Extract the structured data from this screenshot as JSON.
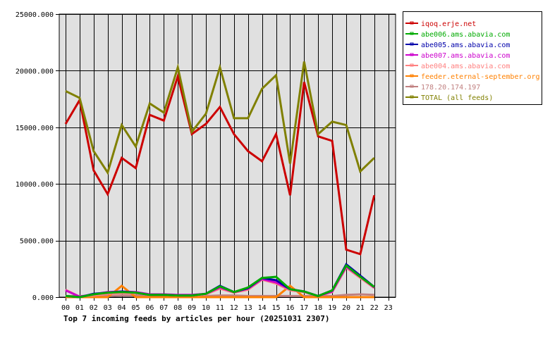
{
  "chart_data": {
    "type": "line",
    "title": "Top 7 incoming feeds by articles per hour (20251031 2307)",
    "xlabel": "",
    "ylabel": "",
    "ylim": [
      0,
      25000
    ],
    "yticks": [
      0,
      5000,
      10000,
      15000,
      20000,
      25000
    ],
    "ytick_labels": [
      "0.000",
      "5000.000",
      "10000.000",
      "15000.000",
      "20000.000",
      "25000.000"
    ],
    "categories": [
      "00",
      "01",
      "02",
      "03",
      "04",
      "05",
      "06",
      "07",
      "08",
      "09",
      "10",
      "11",
      "12",
      "13",
      "14",
      "15",
      "16",
      "17",
      "18",
      "19",
      "20",
      "21",
      "22",
      "23"
    ],
    "grid": true,
    "legend_position": "right-top",
    "series": [
      {
        "name": "iqoq.erje.net",
        "color": "#cc0000",
        "values": [
          15300,
          17400,
          11200,
          9100,
          12300,
          11400,
          16100,
          15600,
          19500,
          14400,
          15300,
          16800,
          14400,
          12900,
          12000,
          14400,
          9000,
          19000,
          14200,
          13800,
          4200,
          3800,
          9000
        ]
      },
      {
        "name": "abe006.ams.abavia.com",
        "color": "#00aa00",
        "values": [
          100,
          0,
          250,
          400,
          450,
          400,
          200,
          200,
          150,
          150,
          300,
          950,
          450,
          850,
          1700,
          1800,
          700,
          500,
          100,
          600,
          2800,
          1800,
          900
        ]
      },
      {
        "name": "abe005.ams.abavia.com",
        "color": "#0000aa",
        "values": [
          100,
          0,
          300,
          400,
          500,
          400,
          200,
          200,
          150,
          150,
          300,
          1000,
          450,
          800,
          1700,
          1500,
          700,
          500,
          100,
          600,
          2900,
          1900,
          900
        ]
      },
      {
        "name": "abe007.ams.abavia.com",
        "color": "#cc00cc",
        "values": [
          600,
          50,
          250,
          450,
          500,
          450,
          250,
          250,
          200,
          200,
          300,
          850,
          450,
          750,
          1600,
          1300,
          700,
          500,
          100,
          500,
          2700,
          1800,
          850
        ]
      },
      {
        "name": "abe004.ams.abavia.com",
        "color": "#ff8080",
        "values": [
          650,
          50,
          150,
          300,
          350,
          350,
          200,
          200,
          150,
          150,
          250,
          750,
          400,
          650,
          1550,
          1200,
          600,
          450,
          100,
          450,
          2600,
          1700,
          800
        ]
      },
      {
        "name": "feeder.eternal-september.org",
        "color": "#ff8000",
        "values": [
          0,
          0,
          0,
          0,
          1000,
          0,
          0,
          0,
          0,
          0,
          0,
          0,
          0,
          0,
          0,
          0,
          1000,
          0,
          0,
          0,
          0,
          0,
          0
        ]
      },
      {
        "name": "178.20.174.197",
        "color": "#c08080",
        "values": [
          100,
          100,
          100,
          100,
          150,
          150,
          100,
          100,
          150,
          150,
          100,
          150,
          150,
          100,
          100,
          100,
          100,
          100,
          100,
          100,
          200,
          250,
          200
        ]
      },
      {
        "name": "TOTAL (all feeds)",
        "color": "#808000",
        "values": [
          18200,
          17600,
          12900,
          11000,
          15200,
          13300,
          17100,
          16300,
          20300,
          14600,
          16200,
          20300,
          15800,
          15800,
          18400,
          19600,
          11800,
          20800,
          14400,
          15500,
          15200,
          11100,
          12300
        ]
      }
    ]
  },
  "legend": {
    "items": [
      {
        "label": "iqoq.erje.net",
        "color": "#cc0000"
      },
      {
        "label": "abe006.ams.abavia.com",
        "color": "#00aa00"
      },
      {
        "label": "abe005.ams.abavia.com",
        "color": "#0000aa"
      },
      {
        "label": "abe007.ams.abavia.com",
        "color": "#cc00cc"
      },
      {
        "label": "abe004.ams.abavia.com",
        "color": "#ff8080"
      },
      {
        "label": "feeder.eternal-september.org",
        "color": "#ff8000"
      },
      {
        "label": "178.20.174.197",
        "color": "#c08080"
      },
      {
        "label": "TOTAL (all feeds)",
        "color": "#808000"
      }
    ]
  },
  "colors": {
    "plot_background": "#e0e0e0",
    "grid": "#000000",
    "page_background": "#ffffff"
  }
}
